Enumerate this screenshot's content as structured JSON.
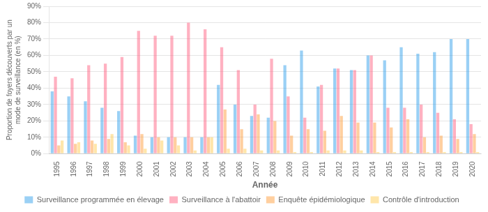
{
  "chart_data": {
    "type": "bar",
    "categories": [
      1995,
      1996,
      1997,
      1998,
      1999,
      2000,
      2001,
      2002,
      2003,
      2004,
      2005,
      2006,
      2007,
      2008,
      2009,
      2010,
      2011,
      2012,
      2013,
      2014,
      2015,
      2016,
      2017,
      2018,
      2019,
      2020
    ],
    "series": [
      {
        "name": "Surveillance programmée en élevage",
        "values": [
          38,
          35,
          32,
          28,
          26,
          11,
          10,
          10,
          10,
          10,
          42,
          30,
          23,
          22,
          54,
          63,
          41,
          52,
          51,
          60,
          57,
          65,
          61,
          62,
          70,
          70
        ]
      },
      {
        "name": "Surveillance à l'abattoir",
        "values": [
          47,
          46,
          54,
          55,
          59,
          75,
          72,
          72,
          80,
          76,
          65,
          51,
          30,
          58,
          35,
          22,
          42,
          52,
          51,
          60,
          28,
          28,
          30,
          25,
          21,
          18
        ]
      },
      {
        "name": "Enquête épidémiologique",
        "values": [
          5,
          6,
          8,
          9,
          7,
          12,
          10,
          10,
          10,
          10,
          27,
          15,
          24,
          20,
          11,
          15,
          14,
          23,
          19,
          19,
          16,
          21,
          10,
          11,
          9,
          12
        ]
      },
      {
        "name": "Contrôle d'introduction",
        "values": [
          8,
          7,
          6,
          12,
          5,
          3,
          8,
          5,
          2,
          10,
          3,
          3,
          2,
          2,
          1,
          1,
          2,
          2,
          2,
          1,
          1,
          1,
          1,
          1,
          1,
          1
        ]
      }
    ],
    "xlabel": "Année",
    "ylabel": "Proportion de foyers découverts par un\nmode de surveillance (en %)",
    "ylim": [
      0,
      90
    ],
    "yticks": [
      {
        "value": 0,
        "label": "0%"
      },
      {
        "value": 10,
        "label": "10%"
      },
      {
        "value": 20,
        "label": "20%"
      },
      {
        "value": 30,
        "label": "30%"
      },
      {
        "value": 40,
        "label": "40%"
      },
      {
        "value": 50,
        "label": "50%"
      },
      {
        "value": 60,
        "label": "60%"
      },
      {
        "value": 70,
        "label": "70%"
      },
      {
        "value": 80,
        "label": "80%"
      },
      {
        "value": 90,
        "label": "90%"
      }
    ],
    "grid": true,
    "legend": "bottom"
  }
}
